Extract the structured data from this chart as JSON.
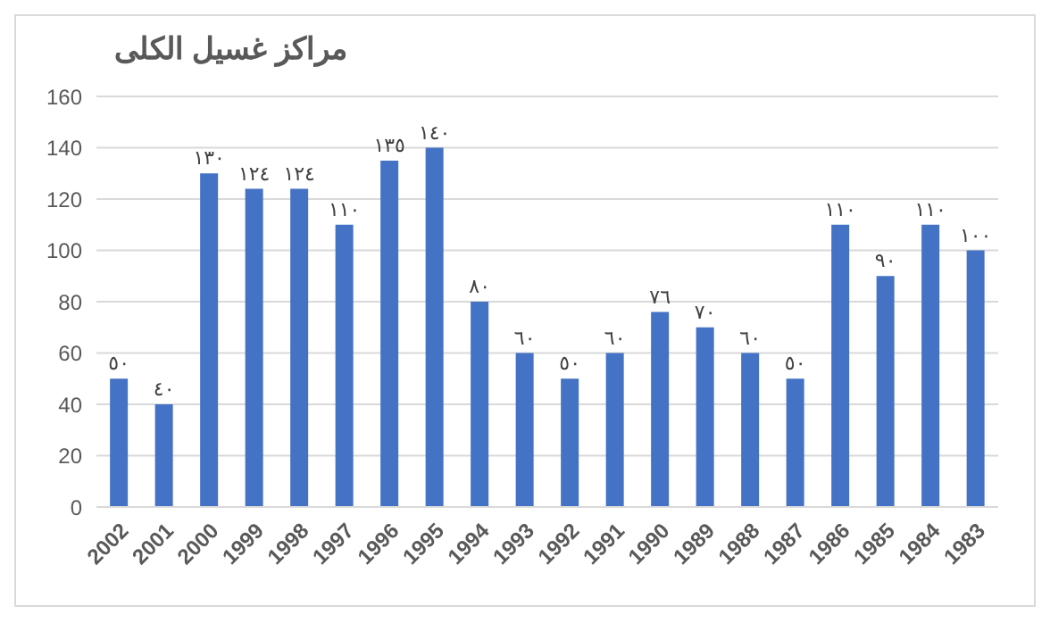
{
  "chart_data": {
    "type": "bar",
    "title": "مراكز غسيل الكلى",
    "categories": [
      "2002",
      "2001",
      "2000",
      "1999",
      "1998",
      "1997",
      "1996",
      "1995",
      "1994",
      "1993",
      "1992",
      "1991",
      "1990",
      "1989",
      "1988",
      "1987",
      "1986",
      "1985",
      "1984",
      "1983"
    ],
    "values": [
      50,
      40,
      130,
      124,
      124,
      110,
      135,
      140,
      80,
      60,
      50,
      60,
      76,
      70,
      60,
      50,
      110,
      90,
      110,
      100
    ],
    "value_labels": [
      "٥٠",
      "٤٠",
      "١٣٠",
      "١٢٤",
      "١٢٤",
      "١١٠",
      "١٣٥",
      "١٤٠",
      "٨٠",
      "٦٠",
      "٥٠",
      "٦٠",
      "٧٦",
      "٧٠",
      "٦٠",
      "٥٠",
      "١١٠",
      "٩٠",
      "١١٠",
      "١٠٠"
    ],
    "color": "#4472c4",
    "ylim": [
      0,
      160
    ],
    "yticks": [
      0,
      20,
      40,
      60,
      80,
      100,
      120,
      140,
      160
    ],
    "grid": "y"
  }
}
